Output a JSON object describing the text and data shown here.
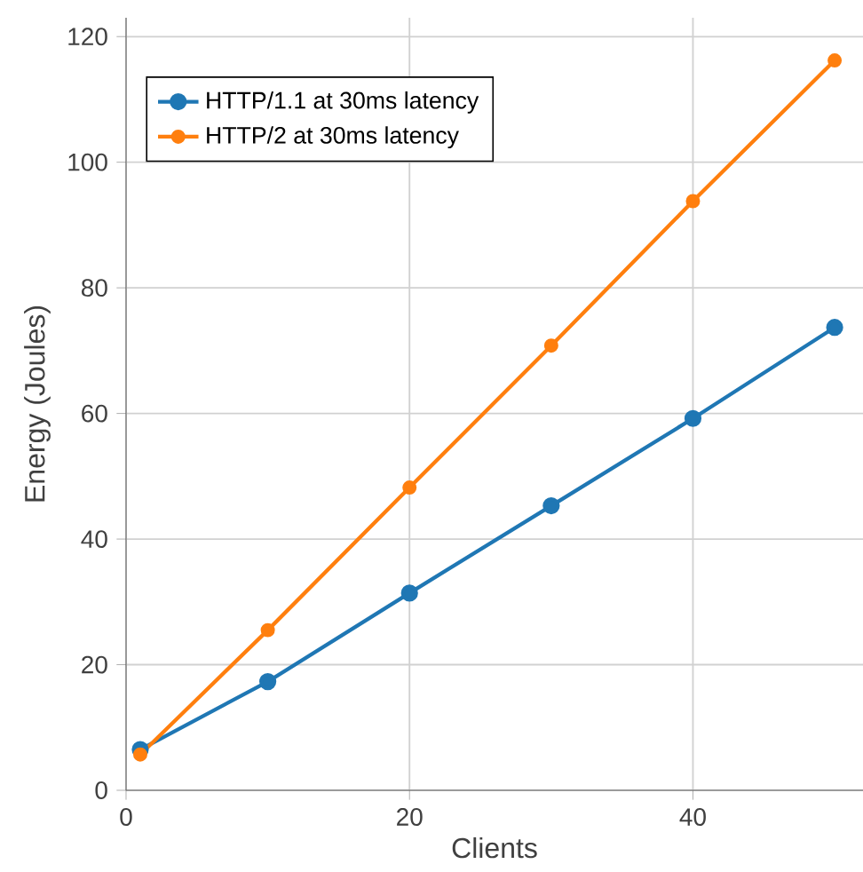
{
  "chart_data": {
    "type": "line",
    "xlabel": "Clients",
    "ylabel": "Energy (Joules)",
    "xlim": [
      0,
      52
    ],
    "ylim": [
      0,
      123
    ],
    "xticks": [
      0,
      20,
      40
    ],
    "yticks": [
      0,
      20,
      40,
      60,
      80,
      100,
      120
    ],
    "grid": true,
    "legend": "top left",
    "marker": "circle",
    "series": [
      {
        "name": "HTTP/1.1 at 30ms latency",
        "color": "#1f77b4",
        "x": [
          1,
          10,
          20,
          30,
          40,
          50
        ],
        "values": [
          6.5,
          17.3,
          31.4,
          45.3,
          59.2,
          73.7
        ]
      },
      {
        "name": "HTTP/2 at 30ms latency",
        "color": "#ff7f0e",
        "x": [
          1,
          10,
          20,
          30,
          40,
          50
        ],
        "values": [
          5.7,
          25.5,
          48.2,
          70.8,
          93.8,
          116.2
        ]
      }
    ]
  }
}
